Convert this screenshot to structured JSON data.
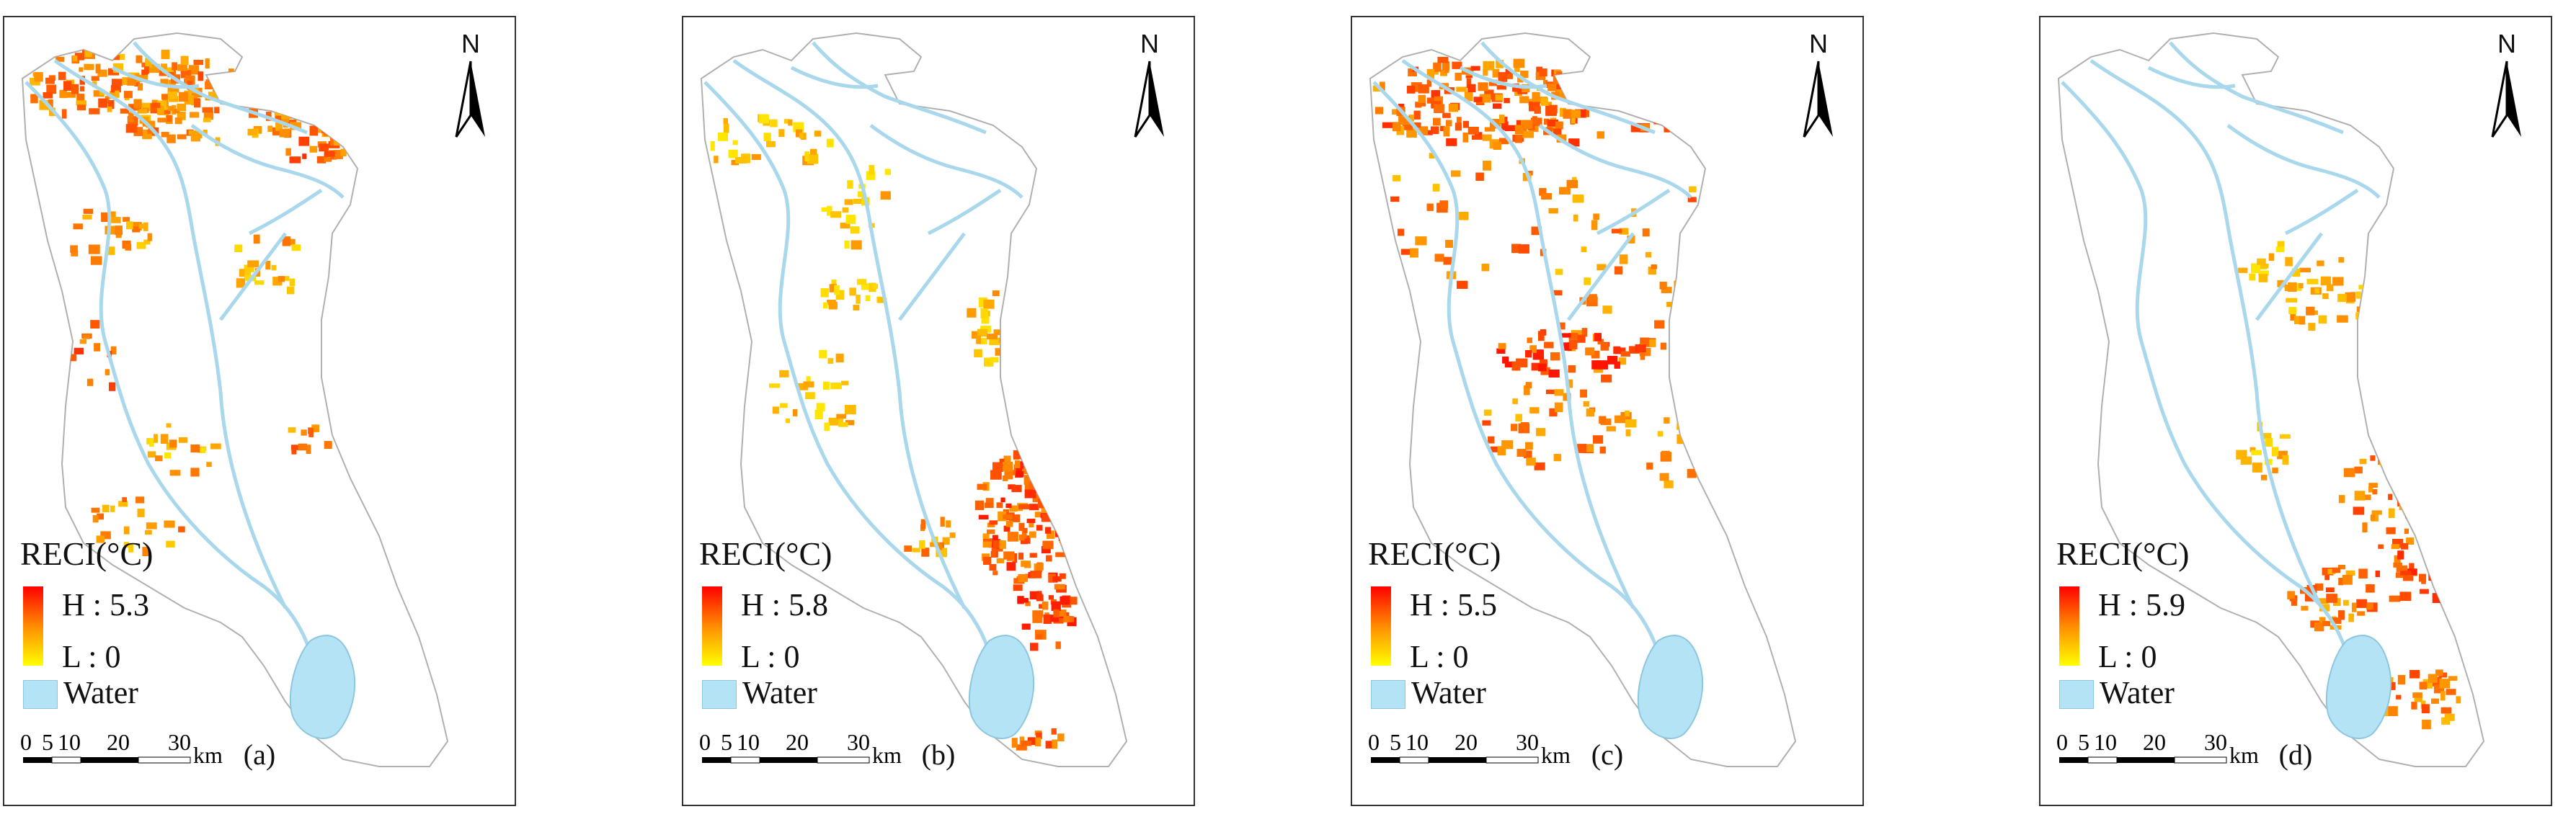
{
  "panels": [
    {
      "id": "a",
      "label": "(a)",
      "legend_title": "RECI(°C)",
      "high_label": "H : 5.3",
      "low_label": "L : 0",
      "water_label": "Water",
      "scale_ticks": [
        "0",
        "5",
        "10",
        "20",
        "30"
      ],
      "scale_unit": "km",
      "north": "N"
    },
    {
      "id": "b",
      "label": "(b)",
      "legend_title": "RECI(°C)",
      "high_label": "H : 5.8",
      "low_label": "L : 0",
      "water_label": "Water",
      "scale_ticks": [
        "0",
        "5",
        "10",
        "20",
        "30"
      ],
      "scale_unit": "km",
      "north": "N"
    },
    {
      "id": "c",
      "label": "(c)",
      "legend_title": "RECI(°C)",
      "high_label": "H : 5.5",
      "low_label": "L : 0",
      "water_label": "Water",
      "scale_ticks": [
        "0",
        "5",
        "10",
        "20",
        "30"
      ],
      "scale_unit": "km",
      "north": "N"
    },
    {
      "id": "d",
      "label": "(d)",
      "legend_title": "RECI(°C)",
      "high_label": "H : 5.9",
      "low_label": "L : 0",
      "water_label": "Water",
      "scale_ticks": [
        "0",
        "5",
        "10",
        "20",
        "30"
      ],
      "scale_unit": "km",
      "north": "N"
    }
  ],
  "colors": {
    "ramp_high": "#ff0000",
    "ramp_mid": "#ff8c00",
    "ramp_low": "#ffff00",
    "water": "#b3e3f5",
    "river": "#a9d8ec",
    "outline": "#b0b0b0"
  }
}
